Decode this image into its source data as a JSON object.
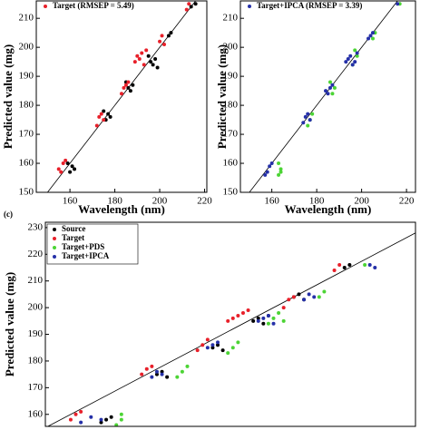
{
  "chart_data": [
    {
      "type": "scatter",
      "xlabel": "Wavelength (nm)",
      "ylabel": "Predicted value (mg)",
      "xlim": [
        145,
        221
      ],
      "ylim": [
        150,
        216
      ],
      "xticks": [
        160,
        180,
        200,
        220
      ],
      "yticks": [
        150,
        160,
        170,
        180,
        190,
        200,
        210
      ],
      "series": [
        {
          "color": "#000000",
          "x": [
            160,
            161,
            162,
            159,
            176,
            177,
            178,
            175,
            186,
            187,
            188,
            185,
            196,
            197,
            198,
            195,
            199,
            204,
            205,
            214,
            216
          ],
          "y": [
            157,
            159,
            158,
            160,
            175,
            177,
            176,
            178,
            186,
            185,
            187,
            188,
            195,
            194,
            196,
            197,
            193,
            204,
            205,
            214,
            215
          ]
        },
        {
          "name": "Target (RMSEP = 5.49)",
          "color": "#e8202a",
          "x": [
            156,
            157,
            158,
            155,
            172,
            173,
            174,
            175,
            183,
            184,
            185,
            186,
            189,
            190,
            191,
            192,
            193,
            194,
            200,
            201,
            202,
            212,
            213
          ],
          "y": [
            157,
            160,
            161,
            158,
            173,
            176,
            177,
            175,
            184,
            186,
            187,
            188,
            195,
            197,
            196,
            198,
            194,
            199,
            202,
            204,
            201,
            213,
            215
          ]
        }
      ]
    },
    {
      "type": "scatter",
      "xlabel": "Wavelength (nm)",
      "ylabel": "Predicted value (mg)",
      "xlim": [
        146,
        224
      ],
      "ylim": [
        150,
        216
      ],
      "xticks": [
        160,
        180,
        200,
        220
      ],
      "yticks": [
        150,
        160,
        170,
        180,
        190,
        200,
        210
      ],
      "series": [
        {
          "color": "#4cd435",
          "x": [
            163,
            164,
            163,
            164,
            177,
            178,
            176,
            187,
            188,
            186,
            196,
            197,
            198,
            205,
            206,
            217
          ],
          "y": [
            156,
            158,
            160,
            157,
            175,
            177,
            173,
            184,
            186,
            188,
            194,
            199,
            197,
            203,
            205,
            215
          ]
        },
        {
          "name": "Target+IPCA (RMSEP = 3.39)",
          "color": "#2530a8",
          "x": [
            158,
            159,
            160,
            157,
            174,
            175,
            176,
            177,
            184,
            185,
            186,
            187,
            193,
            194,
            195,
            196,
            197,
            198,
            203,
            204,
            205,
            216
          ],
          "y": [
            157,
            159,
            160,
            156,
            174,
            176,
            177,
            175,
            185,
            184,
            186,
            187,
            195,
            196,
            197,
            194,
            195,
            198,
            203,
            204,
            205,
            215
          ]
        }
      ]
    },
    {
      "type": "scatter",
      "panel_label": "(c)",
      "ylabel": "Predicted value (mg)",
      "xlim": [
        155,
        228
      ],
      "ylim": [
        155.5,
        232
      ],
      "yticks": [
        160,
        170,
        180,
        190,
        200,
        210,
        220,
        230
      ],
      "series": [
        {
          "name": "Source",
          "color": "#000000",
          "x": [
            166,
            167,
            168,
            177,
            178,
            179,
            188,
            189,
            190,
            196,
            197,
            198,
            199,
            204,
            205,
            206,
            214,
            215
          ],
          "y": [
            157,
            158,
            159,
            175,
            176,
            174,
            185,
            186,
            184,
            195,
            196,
            194,
            197,
            204,
            205,
            203,
            215,
            216
          ]
        },
        {
          "name": "Target",
          "color": "#e8202a",
          "x": [
            160,
            161,
            162,
            174,
            175,
            176,
            185,
            186,
            187,
            191,
            192,
            193,
            194,
            195,
            202,
            203,
            204,
            212,
            213
          ],
          "y": [
            158,
            160,
            161,
            175,
            177,
            178,
            184,
            186,
            188,
            195,
            196,
            197,
            198,
            199,
            200,
            203,
            204,
            214,
            216
          ]
        },
        {
          "name": "Target+PDS",
          "color": "#4cd435",
          "x": [
            169,
            170,
            170,
            181,
            182,
            183,
            191,
            192,
            193,
            199,
            200,
            201,
            202,
            209,
            210,
            218
          ],
          "y": [
            156,
            158,
            160,
            174,
            176,
            178,
            183,
            185,
            187,
            194,
            196,
            198,
            195,
            204,
            206,
            216
          ]
        },
        {
          "name": "Target+IPCA",
          "color": "#2530a8",
          "x": [
            162,
            164,
            166,
            176,
            177,
            178,
            187,
            188,
            189,
            197,
            198,
            199,
            200,
            206,
            207,
            208,
            219,
            220
          ],
          "y": [
            157,
            159,
            158,
            174,
            176,
            175,
            185,
            186,
            187,
            195,
            196,
            197,
            194,
            203,
            205,
            204,
            216,
            215
          ]
        }
      ]
    }
  ]
}
